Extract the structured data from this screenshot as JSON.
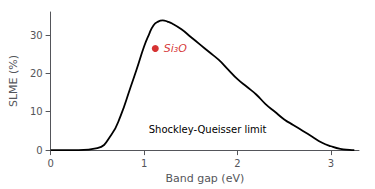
{
  "chart_data": {
    "type": "line",
    "xlabel": "Band gap (eV)",
    "ylabel": "SLME (%)",
    "xlim": [
      0,
      3.3
    ],
    "ylim": [
      0,
      36
    ],
    "xticks": [
      0,
      1,
      2,
      3
    ],
    "yticks": [
      0,
      10,
      20,
      30
    ],
    "series": [
      {
        "type": "line",
        "color": "#000000",
        "x": [
          0.0,
          0.3,
          0.5,
          0.65,
          0.75,
          0.85,
          0.92,
          1.0,
          1.05,
          1.1,
          1.15,
          1.2,
          1.25,
          1.3,
          1.4,
          1.5,
          1.6,
          1.7,
          1.8,
          1.9,
          2.0,
          2.1,
          2.2,
          2.3,
          2.4,
          2.5,
          2.6,
          2.7,
          2.8,
          2.9,
          3.0,
          3.1,
          3.2,
          3.25
        ],
        "values": [
          0.0,
          0.0,
          0.5,
          4.0,
          9.0,
          16.0,
          21.0,
          27.0,
          30.0,
          32.5,
          33.5,
          33.8,
          33.5,
          33.0,
          31.5,
          29.5,
          27.5,
          25.5,
          23.5,
          21.0,
          18.5,
          16.5,
          14.5,
          12.0,
          10.0,
          8.0,
          6.5,
          5.0,
          3.5,
          2.0,
          1.0,
          0.3,
          0.05,
          0.0
        ]
      },
      {
        "type": "scatter",
        "color": "#cc0000",
        "x": [
          1.12
        ],
        "values": [
          26.5
        ]
      }
    ],
    "annotations": [
      {
        "text": "Si₃O",
        "color": "#cc0000"
      },
      {
        "text": "Shockley-Queisser limit",
        "color": "#000000"
      }
    ]
  }
}
